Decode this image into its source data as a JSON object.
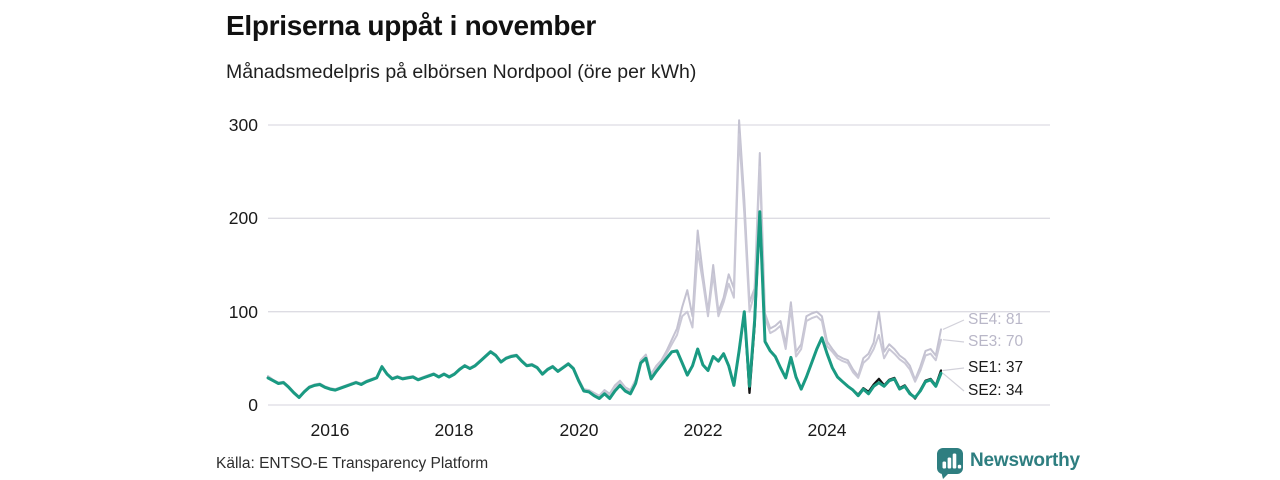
{
  "header": {
    "title": "Elpriserna uppåt i november",
    "subtitle": "Månadsmedelpris på elbörsen Nordpool (öre per kWh)"
  },
  "footer": {
    "source": "Källa: ENTSO-E Transparency Platform",
    "brand": "Newsworthy"
  },
  "colors": {
    "teal_line": "#1a9a82",
    "black_line": "#141414",
    "gray_se4": "#c4c2d1",
    "gray_se3": "#cac8d6",
    "gray_label": "#b9b7c8",
    "dark_label": "#1a1a1a",
    "gridline": "#dddce3",
    "leader": "#d2d1da",
    "brand_teal": "#2e7e80"
  },
  "chart_data": {
    "type": "line",
    "title": "Elpriserna uppåt i november",
    "subtitle": "Månadsmedelpris på elbörsen Nordpool (öre per kWh)",
    "x_unit": "month",
    "x_start": "2015-01",
    "x_end": "2025-11",
    "grid": "horizontal",
    "legend_position": "end-labels-right",
    "ylim": [
      0,
      310
    ],
    "y_ticks": [
      0,
      100,
      200,
      300
    ],
    "y_tick_labels": [
      "0",
      "100",
      "200",
      "300"
    ],
    "x_ticks": [
      {
        "index": 12,
        "label": "2016"
      },
      {
        "index": 36,
        "label": "2018"
      },
      {
        "index": 60,
        "label": "2020"
      },
      {
        "index": 84,
        "label": "2022"
      },
      {
        "index": 108,
        "label": "2024"
      }
    ],
    "series": [
      {
        "name": "SE4",
        "end_label": "SE4: 81",
        "end_value": 81,
        "color": "#c4c2d1",
        "label_color": "#b9b7c8",
        "values": [
          31,
          27,
          24,
          25,
          20,
          14,
          9,
          15,
          20,
          22,
          23,
          20,
          18,
          17,
          19,
          21,
          23,
          25,
          23,
          26,
          28,
          30,
          42,
          34,
          29,
          31,
          29,
          30,
          31,
          28,
          30,
          32,
          34,
          31,
          34,
          31,
          34,
          39,
          43,
          40,
          43,
          48,
          53,
          58,
          54,
          47,
          51,
          53,
          54,
          48,
          43,
          44,
          41,
          34,
          39,
          42,
          37,
          41,
          45,
          40,
          28,
          17,
          16,
          13,
          10,
          16,
          12,
          21,
          26,
          19,
          16,
          27,
          48,
          54,
          33,
          42,
          48,
          58,
          70,
          82,
          105,
          123,
          95,
          187,
          140,
          100,
          150,
          100,
          115,
          140,
          125,
          305,
          220,
          110,
          125,
          270,
          98,
          82,
          85,
          90,
          65,
          110,
          57,
          65,
          95,
          98,
          100,
          95,
          68,
          60,
          53,
          50,
          48,
          38,
          31,
          50,
          55,
          67,
          100,
          57,
          65,
          60,
          53,
          49,
          42,
          27,
          41,
          58,
          60,
          53,
          81
        ]
      },
      {
        "name": "SE3",
        "end_label": "SE3: 70",
        "end_value": 70,
        "color": "#cac8d6",
        "label_color": "#b9b7c8",
        "values": [
          30,
          26,
          24,
          24,
          19,
          13,
          8,
          14,
          19,
          21,
          22,
          19,
          17,
          16,
          18,
          20,
          22,
          24,
          22,
          25,
          27,
          29,
          41,
          33,
          28,
          30,
          28,
          29,
          30,
          27,
          29,
          31,
          33,
          30,
          33,
          30,
          33,
          38,
          42,
          39,
          42,
          47,
          52,
          57,
          53,
          46,
          50,
          52,
          53,
          47,
          42,
          43,
          40,
          33,
          38,
          41,
          36,
          40,
          44,
          39,
          27,
          16,
          15,
          12,
          9,
          14,
          10,
          19,
          24,
          18,
          14,
          25,
          47,
          52,
          32,
          40,
          46,
          55,
          65,
          75,
          95,
          100,
          83,
          165,
          132,
          95,
          140,
          95,
          110,
          130,
          115,
          290,
          205,
          100,
          120,
          255,
          93,
          77,
          80,
          85,
          60,
          104,
          52,
          60,
          90,
          93,
          95,
          90,
          63,
          57,
          50,
          47,
          45,
          35,
          29,
          45,
          50,
          60,
          75,
          50,
          60,
          55,
          49,
          45,
          38,
          25,
          37,
          53,
          55,
          48,
          70
        ]
      },
      {
        "name": "SE1",
        "end_label": "SE1: 37",
        "end_value": 37,
        "color": "#141414",
        "label_color": "#1a1a1a",
        "values": [
          29,
          26,
          23,
          24,
          19,
          13,
          8,
          14,
          19,
          21,
          22,
          19,
          17,
          16,
          18,
          20,
          22,
          24,
          22,
          25,
          27,
          29,
          41,
          33,
          28,
          30,
          28,
          29,
          30,
          27,
          29,
          31,
          33,
          30,
          33,
          30,
          33,
          38,
          42,
          39,
          42,
          47,
          52,
          57,
          53,
          46,
          50,
          52,
          53,
          47,
          42,
          43,
          40,
          33,
          38,
          41,
          36,
          40,
          44,
          39,
          26,
          15,
          14,
          10,
          7,
          12,
          7,
          15,
          21,
          15,
          12,
          23,
          45,
          50,
          28,
          36,
          43,
          50,
          57,
          58,
          45,
          32,
          42,
          60,
          43,
          37,
          52,
          47,
          55,
          42,
          21,
          58,
          100,
          13,
          85,
          207,
          68,
          58,
          52,
          40,
          29,
          51,
          30,
          17,
          30,
          45,
          60,
          72,
          55,
          40,
          30,
          25,
          20,
          16,
          11,
          18,
          14,
          22,
          28,
          21,
          27,
          29,
          18,
          21,
          13,
          7,
          16,
          26,
          28,
          21,
          37
        ]
      },
      {
        "name": "SE2",
        "end_label": "SE2: 34",
        "end_value": 34,
        "color": "#1a9a82",
        "label_color": "#1a1a1a",
        "values": [
          29,
          26,
          23,
          24,
          19,
          13,
          8,
          14,
          19,
          21,
          22,
          19,
          17,
          16,
          18,
          20,
          22,
          24,
          22,
          25,
          27,
          29,
          41,
          33,
          28,
          30,
          28,
          29,
          30,
          27,
          29,
          31,
          33,
          30,
          33,
          30,
          33,
          38,
          42,
          39,
          42,
          47,
          52,
          57,
          53,
          46,
          50,
          52,
          53,
          47,
          42,
          43,
          40,
          33,
          38,
          41,
          36,
          40,
          44,
          39,
          26,
          15,
          14,
          10,
          7,
          12,
          7,
          15,
          21,
          15,
          12,
          23,
          45,
          50,
          28,
          36,
          43,
          50,
          57,
          58,
          45,
          32,
          42,
          60,
          43,
          37,
          52,
          47,
          55,
          42,
          21,
          58,
          100,
          20,
          90,
          207,
          68,
          58,
          52,
          40,
          29,
          51,
          30,
          17,
          30,
          45,
          60,
          72,
          55,
          40,
          30,
          25,
          20,
          16,
          10,
          17,
          12,
          20,
          24,
          20,
          26,
          28,
          17,
          20,
          12,
          8,
          15,
          25,
          27,
          20,
          34
        ]
      }
    ]
  }
}
